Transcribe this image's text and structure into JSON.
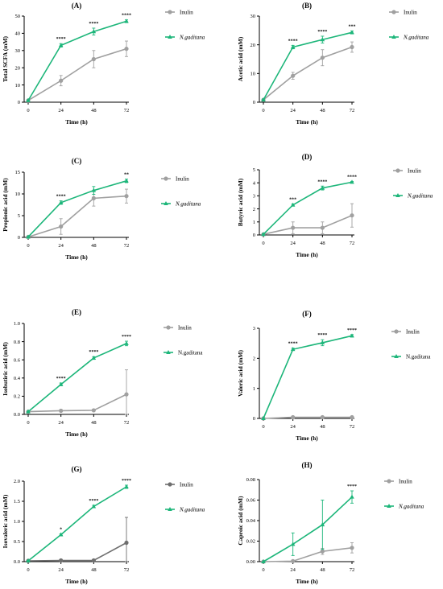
{
  "colors": {
    "inulin": "#a0a0a0",
    "inulin_dark": "#6e6e6e",
    "ngaditana": "#1db67a",
    "axis": "#000000"
  },
  "chart_data": [
    {
      "type": "line",
      "panel": "(A)",
      "xlabel": "Time (h)",
      "ylabel": "Total SCFA (mM)",
      "x": [
        0,
        24,
        48,
        72
      ],
      "xticks": [
        "0",
        "24",
        "48",
        "72"
      ],
      "ylim": [
        0,
        50
      ],
      "yticks": [
        "0",
        "10",
        "20",
        "30",
        "40",
        "50"
      ],
      "legend": "right",
      "series": [
        {
          "name": "Inulin",
          "values": [
            1,
            12.5,
            25,
            31
          ],
          "err": [
            0.4,
            3,
            5,
            4.5
          ],
          "marker": "circle"
        },
        {
          "name": "N.gaditana",
          "name_italic": true,
          "values": [
            1,
            33,
            41,
            47
          ],
          "err": [
            0.4,
            1,
            2,
            0.8
          ],
          "marker": "triangle"
        }
      ],
      "significance": [
        "",
        "****",
        "****",
        "****"
      ]
    },
    {
      "type": "line",
      "panel": "(B)",
      "xlabel": "Time (h)",
      "ylabel": "Acetic acid (mM)",
      "x": [
        0,
        24,
        48,
        72
      ],
      "xticks": [
        "0",
        "24",
        "48",
        "72"
      ],
      "ylim": [
        0,
        30
      ],
      "yticks": [
        "0",
        "10",
        "20",
        "30"
      ],
      "legend": "right",
      "series": [
        {
          "name": "Inulin",
          "values": [
            0.8,
            9.2,
            15.5,
            19.2
          ],
          "err": [
            0.3,
            1.2,
            2.8,
            1.8
          ],
          "marker": "circle"
        },
        {
          "name": "N.gaditana",
          "name_italic": true,
          "values": [
            0.8,
            19.2,
            21.8,
            24.3
          ],
          "err": [
            0.3,
            0.6,
            1.2,
            0.5
          ],
          "marker": "triangle"
        }
      ],
      "significance": [
        "",
        "****",
        "****",
        "***"
      ]
    },
    {
      "type": "line",
      "panel": "(C)",
      "xlabel": "Time (h)",
      "ylabel": "Propionic acid (mM)",
      "x": [
        0,
        24,
        48,
        72
      ],
      "xticks": [
        "0",
        "24",
        "48",
        "72"
      ],
      "ylim": [
        0,
        15
      ],
      "yticks": [
        "0",
        "5",
        "10",
        "15"
      ],
      "legend": "right",
      "series": [
        {
          "name": "Inulin",
          "values": [
            0.1,
            2.5,
            9,
            9.5
          ],
          "err": [
            0.1,
            1.8,
            1.8,
            1.6
          ],
          "marker": "circle"
        },
        {
          "name": "N.gaditana",
          "name_italic": true,
          "values": [
            0.1,
            8,
            10.8,
            13
          ],
          "err": [
            0.1,
            0.4,
            0.9,
            0.4
          ],
          "marker": "triangle"
        }
      ],
      "significance": [
        "",
        "****",
        "",
        "**"
      ]
    },
    {
      "type": "line",
      "panel": "(D)",
      "xlabel": "Time (h)",
      "ylabel": "Butyric acid (mM)",
      "x": [
        0,
        24,
        48,
        72
      ],
      "xticks": [
        "0",
        "24",
        "48",
        "72"
      ],
      "ylim": [
        0,
        5
      ],
      "yticks": [
        "0",
        "1",
        "2",
        "3",
        "4",
        "5"
      ],
      "legend": "right",
      "series": [
        {
          "name": "Inulin",
          "values": [
            0.05,
            0.55,
            0.55,
            1.5
          ],
          "err": [
            0.05,
            0.45,
            0.45,
            0.9
          ],
          "marker": "circle"
        },
        {
          "name": "N.gaditana",
          "name_italic": true,
          "values": [
            0.05,
            2.3,
            3.6,
            4.05
          ],
          "err": [
            0.05,
            0.08,
            0.15,
            0.06
          ],
          "marker": "triangle"
        }
      ],
      "significance": [
        "",
        "***",
        "****",
        "****"
      ]
    },
    {
      "type": "line",
      "panel": "(E)",
      "xlabel": "Time (h)",
      "ylabel": "Isobutiric acid (mM)",
      "x": [
        0,
        24,
        48,
        72
      ],
      "xticks": [
        "0",
        "24",
        "48",
        "72"
      ],
      "ylim": [
        0,
        1.0
      ],
      "yticks": [
        "0.0",
        "0.2",
        "0.4",
        "0.6",
        "0.8",
        "1.0"
      ],
      "legend": "right",
      "series": [
        {
          "name": "Inulin",
          "values": [
            0.03,
            0.04,
            0.045,
            0.22
          ],
          "err": [
            0.005,
            0.005,
            0.005,
            0.27
          ],
          "marker": "circle"
        },
        {
          "name": "N.gaditana",
          "name_italic": false,
          "values": [
            0.03,
            0.33,
            0.62,
            0.78
          ],
          "err": [
            0.005,
            0.015,
            0.015,
            0.025
          ],
          "marker": "triangle"
        }
      ],
      "significance": [
        "",
        "****",
        "****",
        "****"
      ]
    },
    {
      "type": "line",
      "panel": "(F)",
      "xlabel": "Time (h)",
      "ylabel": "Valeric acid (mM)",
      "x": [
        0,
        24,
        48,
        72
      ],
      "xticks": [
        "0",
        "24",
        "48",
        "72"
      ],
      "ylim": [
        0,
        3
      ],
      "yticks": [
        "0",
        "1",
        "2",
        "3"
      ],
      "legend": "right",
      "series": [
        {
          "name": "Inulin",
          "values": [
            0,
            0.04,
            0.04,
            0.04
          ],
          "err": [
            0,
            0.02,
            0.02,
            0.02
          ],
          "marker": "circle"
        },
        {
          "name": "N.gaditana",
          "name_italic": false,
          "values": [
            0,
            2.3,
            2.52,
            2.75
          ],
          "err": [
            0,
            0.04,
            0.1,
            0.04
          ],
          "marker": "triangle"
        }
      ],
      "significance": [
        "",
        "****",
        "****",
        "****"
      ]
    },
    {
      "type": "line",
      "panel": "(G)",
      "xlabel": "Time (h)",
      "ylabel": "Isovaleric acid (mM)",
      "x": [
        0,
        24,
        48,
        72
      ],
      "xticks": [
        "0",
        "24",
        "48",
        "72"
      ],
      "ylim": [
        0,
        2.0
      ],
      "yticks": [
        "0.0",
        "0.5",
        "1.0",
        "1.5",
        "2.0"
      ],
      "legend": "right",
      "series": [
        {
          "name": "Inulin",
          "values": [
            0.02,
            0.03,
            0.03,
            0.47
          ],
          "err": [
            0.01,
            0.01,
            0.01,
            0.63
          ],
          "marker": "circle",
          "dark": true
        },
        {
          "name": "N.gaditana",
          "name_italic": true,
          "values": [
            0.02,
            0.67,
            1.37,
            1.86
          ],
          "err": [
            0.01,
            0.02,
            0.03,
            0.04
          ],
          "marker": "triangle"
        }
      ],
      "significance": [
        "",
        "*",
        "****",
        "****"
      ]
    },
    {
      "type": "line",
      "panel": "(H)",
      "xlabel": "Time (h)",
      "ylabel": "Caproic acid (mM)",
      "x": [
        0,
        24,
        48,
        72
      ],
      "xticks": [
        "0",
        "24",
        "48",
        "72"
      ],
      "ylim": [
        0,
        0.08
      ],
      "yticks": [
        "0.00",
        "0.02",
        "0.04",
        "0.06",
        "0.08"
      ],
      "legend": "top-right",
      "series": [
        {
          "name": "Inulin",
          "values": [
            0,
            0.0005,
            0.01,
            0.0135
          ],
          "err": [
            0,
            0.0005,
            0.003,
            0.005
          ],
          "marker": "circle"
        },
        {
          "name": "N.gaditana",
          "name_italic": true,
          "values": [
            0,
            0.017,
            0.036,
            0.063
          ],
          "err": [
            0,
            0.011,
            0.024,
            0.006
          ],
          "marker": "triangle"
        }
      ],
      "significance": [
        "",
        "",
        "",
        "****"
      ]
    }
  ]
}
